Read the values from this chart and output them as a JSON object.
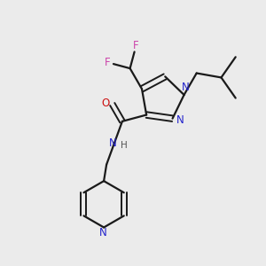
{
  "bg_color": "#ebebeb",
  "bond_color": "#1a1a1a",
  "N_color": "#2222cc",
  "O_color": "#cc1111",
  "F_color": "#cc44aa",
  "C_color": "#1a1a1a",
  "H_color": "#555555",
  "figsize": [
    3.0,
    3.0
  ],
  "dpi": 100,
  "xlim": [
    0,
    10
  ],
  "ylim": [
    0,
    10
  ]
}
